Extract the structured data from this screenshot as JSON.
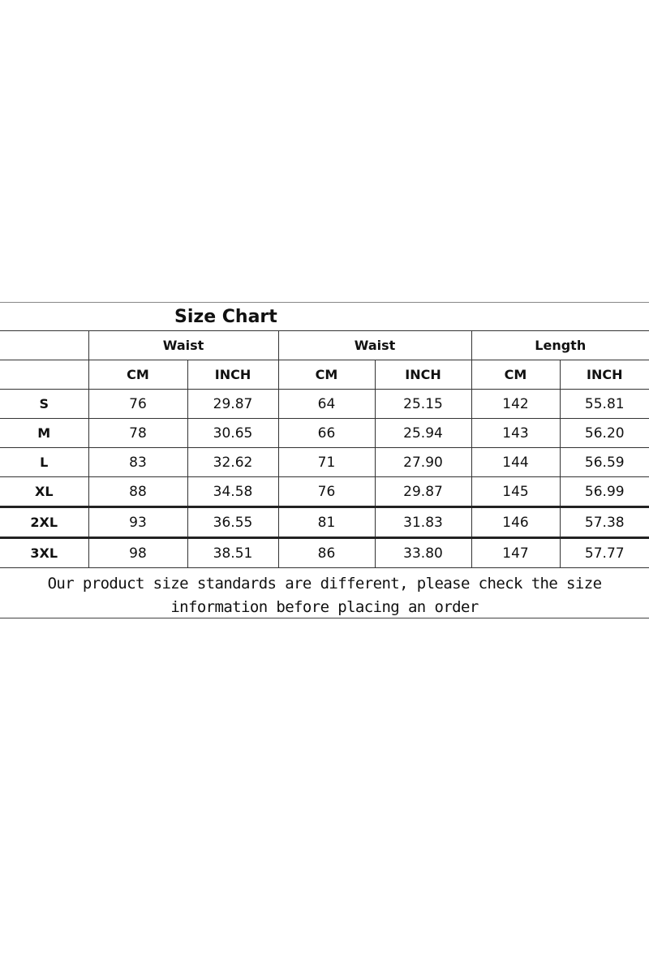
{
  "title": "Size Chart",
  "groups": [
    "Waist",
    "Waist",
    "Length"
  ],
  "units": [
    "CM",
    "INCH",
    "CM",
    "INCH",
    "CM",
    "INCH"
  ],
  "rows": [
    {
      "size": "S",
      "values": [
        "76",
        "29.87",
        "64",
        "25.15",
        "142",
        "55.81"
      ]
    },
    {
      "size": "M",
      "values": [
        "78",
        "30.65",
        "66",
        "25.94",
        "143",
        "56.20"
      ]
    },
    {
      "size": "L",
      "values": [
        "83",
        "32.62",
        "71",
        "27.90",
        "144",
        "56.59"
      ]
    },
    {
      "size": "XL",
      "values": [
        "88",
        "34.58",
        "76",
        "29.87",
        "145",
        "56.99"
      ]
    },
    {
      "size": "2XL",
      "values": [
        "93",
        "36.55",
        "81",
        "31.83",
        "146",
        "57.38"
      ]
    },
    {
      "size": "3XL",
      "values": [
        "98",
        "38.51",
        "86",
        "33.80",
        "147",
        "57.77"
      ]
    }
  ],
  "note": {
    "line1": "Our product size standards are different, please check the size",
    "line2": "information before placing an order"
  }
}
